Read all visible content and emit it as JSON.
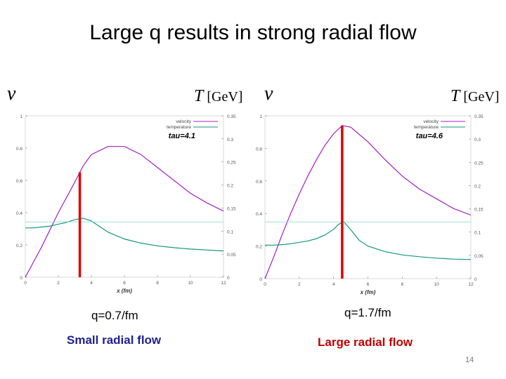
{
  "slide": {
    "title": "Large q results in strong radial flow",
    "page_number": "14"
  },
  "panels": [
    {
      "v_label": "v",
      "t_label": "T",
      "t_unit": "[GeV]",
      "caption": "q=0.7/fm",
      "flow_text": "Small radial flow",
      "flow_color": "#1f1f8f"
    },
    {
      "v_label": "v",
      "t_label": "T",
      "t_unit": "[GeV]",
      "caption": "q=1.7/fm",
      "flow_text": "Large radial flow",
      "flow_color": "#c00000"
    }
  ],
  "colors": {
    "velocity": "#a020c0",
    "temperature": "#119977",
    "hline": "#7fd6d0",
    "marker": "#e00000"
  },
  "chart_data": [
    {
      "type": "line",
      "xlabel": "x (fm)",
      "xlim": [
        0,
        12
      ],
      "xticks": [
        0,
        2,
        4,
        6,
        8,
        10,
        12
      ],
      "ylim_left": [
        0,
        1
      ],
      "yticks_left": [
        "0",
        "0.2",
        "0.4",
        "0.6",
        "0.8",
        "1"
      ],
      "ylim_right": [
        0,
        0.35
      ],
      "yticks_right": [
        "0",
        "0.05",
        "0.1",
        "0.15",
        "0.2",
        "0.25",
        "0.3",
        "0.35"
      ],
      "annotation": "tau=4.1",
      "legend": [
        "velocity",
        "temperature"
      ],
      "legend_position": "top-right",
      "series": [
        {
          "name": "velocity",
          "axis": "left",
          "x": [
            0,
            1,
            2,
            3,
            3.5,
            4,
            5,
            6,
            7,
            8,
            9,
            10,
            11,
            12
          ],
          "y": [
            0,
            0.19,
            0.4,
            0.59,
            0.69,
            0.76,
            0.81,
            0.81,
            0.76,
            0.68,
            0.6,
            0.52,
            0.46,
            0.41
          ]
        },
        {
          "name": "temperature",
          "axis": "right",
          "x": [
            0,
            0.5,
            1,
            1.5,
            2,
            2.5,
            3,
            3.5,
            4,
            4.5,
            5,
            6,
            7,
            8,
            9,
            10,
            11,
            12
          ],
          "y": [
            0.107,
            0.107,
            0.109,
            0.111,
            0.115,
            0.119,
            0.125,
            0.128,
            0.122,
            0.11,
            0.098,
            0.083,
            0.074,
            0.068,
            0.064,
            0.061,
            0.059,
            0.057
          ]
        },
        {
          "name": "",
          "axis": "right",
          "x": [
            0,
            12
          ],
          "y": [
            0.12,
            0.12
          ]
        }
      ],
      "marker_x": 3.3
    },
    {
      "type": "line",
      "xlabel": "x (fm)",
      "xlim": [
        0,
        12
      ],
      "xticks": [
        0,
        2,
        4,
        6,
        8,
        10,
        12
      ],
      "ylim_left": [
        0,
        1
      ],
      "yticks_left": [
        "0",
        "0.2",
        "0.4",
        "0.6",
        "0.8",
        "1"
      ],
      "ylim_right": [
        0,
        0.35
      ],
      "yticks_right": [
        "0",
        "0.05",
        "0.1",
        "0.15",
        "0.2",
        "0.25",
        "0.3",
        "0.35"
      ],
      "annotation": "tau=4.6",
      "legend": [
        "velocity",
        "temperature"
      ],
      "legend_position": "top-right",
      "series": [
        {
          "name": "velocity",
          "axis": "left",
          "x": [
            0,
            0.5,
            1,
            1.5,
            2,
            2.5,
            3,
            3.5,
            4,
            4.5,
            5,
            6,
            7,
            8,
            9,
            10,
            11,
            12
          ],
          "y": [
            0,
            0.13,
            0.27,
            0.4,
            0.52,
            0.63,
            0.73,
            0.82,
            0.89,
            0.94,
            0.93,
            0.84,
            0.73,
            0.63,
            0.55,
            0.49,
            0.43,
            0.39
          ]
        },
        {
          "name": "temperature",
          "axis": "right",
          "x": [
            0,
            0.5,
            1,
            1.5,
            2,
            2.5,
            3,
            3.5,
            4,
            4.3,
            4.6,
            5,
            5.5,
            6,
            7,
            8,
            9,
            10,
            11,
            12
          ],
          "y": [
            0.072,
            0.072,
            0.073,
            0.075,
            0.078,
            0.081,
            0.086,
            0.094,
            0.106,
            0.117,
            0.122,
            0.105,
            0.082,
            0.07,
            0.058,
            0.051,
            0.047,
            0.044,
            0.042,
            0.041
          ]
        },
        {
          "name": "",
          "axis": "right",
          "x": [
            0,
            12
          ],
          "y": [
            0.122,
            0.122
          ]
        }
      ],
      "marker_x": 4.5
    }
  ]
}
